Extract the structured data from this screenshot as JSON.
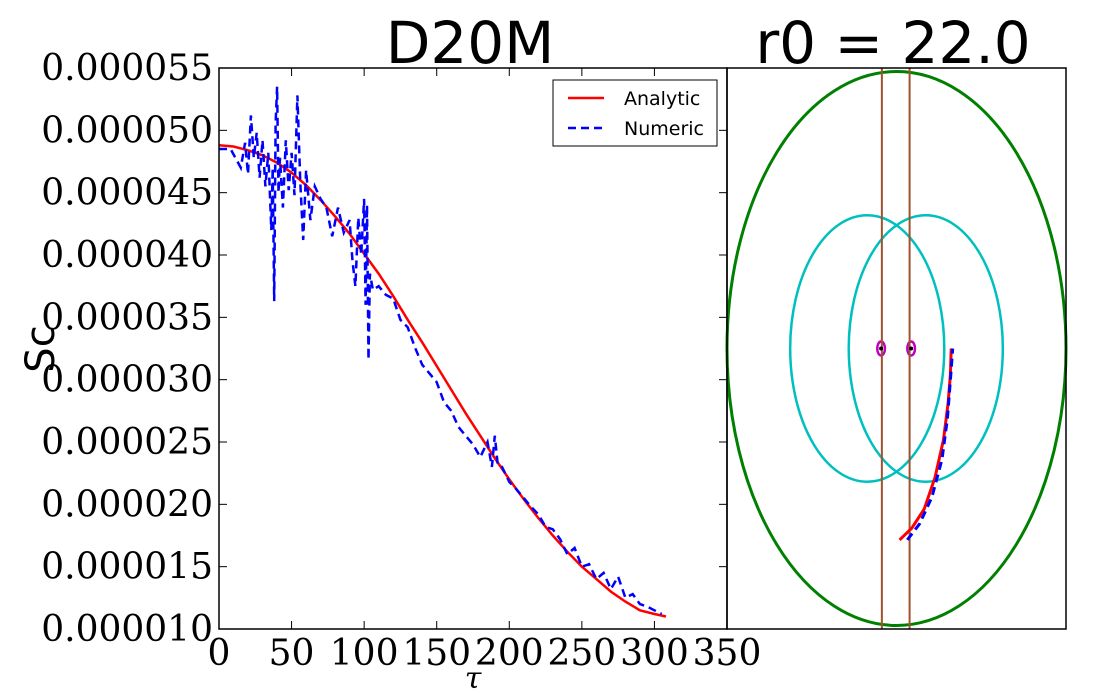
{
  "chart_data": [
    {
      "type": "line",
      "title": "D20M",
      "xlabel": "τ",
      "ylabel": "Sc",
      "xlim": [
        0,
        350
      ],
      "ylim": [
        1e-05,
        5.5e-05
      ],
      "xticks": [
        "0",
        "50",
        "100",
        "150",
        "200",
        "250",
        "300",
        "350"
      ],
      "yticks": [
        "0.000010",
        "0.000015",
        "0.000020",
        "0.000025",
        "0.000030",
        "0.000035",
        "0.000040",
        "0.000045",
        "0.000050",
        "0.000055"
      ],
      "grid": false,
      "legend": "top-right",
      "colors": {
        "analytic": "#ff0000",
        "numeric": "#0000ff"
      },
      "series": [
        {
          "name": "Analytic",
          "style": "solid",
          "x": [
            0,
            10,
            20,
            30,
            40,
            50,
            60,
            70,
            80,
            90,
            100,
            110,
            120,
            130,
            140,
            150,
            160,
            170,
            180,
            190,
            200,
            210,
            220,
            230,
            240,
            250,
            260,
            270,
            280,
            290,
            300,
            308
          ],
          "y": [
            4.88e-05,
            4.87e-05,
            4.84e-05,
            4.8e-05,
            4.74e-05,
            4.66e-05,
            4.56e-05,
            4.44e-05,
            4.31e-05,
            4.17e-05,
            4.01e-05,
            3.85e-05,
            3.67e-05,
            3.48e-05,
            3.3e-05,
            3.11e-05,
            2.92e-05,
            2.73e-05,
            2.55e-05,
            2.37e-05,
            2.2e-05,
            2.04e-05,
            1.89e-05,
            1.75e-05,
            1.62e-05,
            1.5e-05,
            1.4e-05,
            1.3e-05,
            1.22e-05,
            1.15e-05,
            1.12e-05,
            1.1e-05
          ]
        },
        {
          "name": "Numeric",
          "style": "dashed",
          "x": [
            0,
            8,
            15,
            18,
            20,
            22,
            24,
            26,
            28,
            30,
            32,
            34,
            36,
            37,
            38,
            39,
            40,
            41,
            42,
            44,
            46,
            48,
            50,
            52,
            54,
            56,
            58,
            60,
            63,
            66,
            70,
            74,
            78,
            82,
            86,
            90,
            92,
            94,
            96,
            98,
            100,
            101,
            102,
            103,
            104,
            106,
            110,
            115,
            120,
            125,
            130,
            135,
            140,
            145,
            150,
            155,
            160,
            165,
            170,
            175,
            180,
            185,
            188,
            190,
            192,
            195,
            200,
            205,
            210,
            215,
            220,
            225,
            230,
            235,
            240,
            245,
            250,
            255,
            260,
            265,
            270,
            275,
            280,
            285,
            290,
            295,
            300,
            305
          ],
          "y": [
            4.85e-05,
            4.85e-05,
            4.7e-05,
            4.9e-05,
            4.65e-05,
            5.12e-05,
            4.78e-05,
            4.98e-05,
            4.62e-05,
            4.92e-05,
            4.55e-05,
            4.82e-05,
            4.2e-05,
            4.7e-05,
            3.63e-05,
            5.05e-05,
            5.35e-05,
            4.5e-05,
            4.78e-05,
            4.38e-05,
            4.92e-05,
            4.52e-05,
            4.82e-05,
            4.48e-05,
            5.28e-05,
            4.58e-05,
            4.12e-05,
            4.68e-05,
            4.28e-05,
            4.55e-05,
            4.45e-05,
            4.38e-05,
            4.15e-05,
            4.38e-05,
            4.18e-05,
            4.28e-05,
            3.95e-05,
            3.75e-05,
            4.3e-05,
            4e-05,
            4.45e-05,
            3.6e-05,
            4.4e-05,
            3.16e-05,
            3.85e-05,
            3.72e-05,
            3.75e-05,
            3.68e-05,
            3.65e-05,
            3.48e-05,
            3.42e-05,
            3.26e-05,
            3.12e-05,
            3.05e-05,
            2.98e-05,
            2.82e-05,
            2.75e-05,
            2.62e-05,
            2.55e-05,
            2.48e-05,
            2.38e-05,
            2.5e-05,
            2.3e-05,
            2.55e-05,
            2.32e-05,
            2.3e-05,
            2.18e-05,
            2.12e-05,
            2.05e-05,
            1.98e-05,
            1.92e-05,
            1.82e-05,
            1.8e-05,
            1.72e-05,
            1.6e-05,
            1.65e-05,
            1.5e-05,
            1.52e-05,
            1.4e-05,
            1.45e-05,
            1.32e-05,
            1.42e-05,
            1.25e-05,
            1.28e-05,
            1.2e-05,
            1.18e-05,
            1.15e-05,
            1.12e-05
          ]
        }
      ]
    },
    {
      "type": "line",
      "title": "r0 = 22.0",
      "xlim": [
        -22.0,
        22.0
      ],
      "ylim": [
        -40.0,
        40.0
      ],
      "axes_ticks": false,
      "grid": false,
      "colors": {
        "boundary": "#008000",
        "circles": "#00bfbf",
        "centers": "#bf00bf",
        "verticals": "#a0522d",
        "analytic": "#ff0000",
        "numeric": "#0000ff"
      },
      "shapes": [
        {
          "kind": "ellipse",
          "cx": 0,
          "cy": 0,
          "rx": 22.0,
          "ry": 39.5
        },
        {
          "kind": "ellipse",
          "cx": -3.8,
          "cy": 0,
          "rx": 10.0,
          "ry": 19.0
        },
        {
          "kind": "ellipse",
          "cx": 3.8,
          "cy": 0,
          "rx": 10.0,
          "ry": 19.0
        },
        {
          "kind": "ellipse",
          "cx": -2.0,
          "cy": 0,
          "rx": 0.5,
          "ry": 1.0
        },
        {
          "kind": "ellipse",
          "cx": 1.9,
          "cy": 0,
          "rx": 0.5,
          "ry": 1.0
        },
        {
          "kind": "vline",
          "x": -1.9
        },
        {
          "kind": "vline",
          "x": 1.7
        }
      ],
      "dots": [
        {
          "x": -2.0,
          "y": 0
        },
        {
          "x": 1.9,
          "y": 0
        }
      ],
      "trajectories": [
        {
          "style": "solid",
          "x": [
            0.4,
            2.0,
            3.6,
            5.0,
            6.1,
            6.7,
            7.0,
            7.1
          ],
          "y": [
            -27.3,
            -25.6,
            -22.9,
            -18.4,
            -13.0,
            -7.8,
            -3.7,
            0.0
          ]
        },
        {
          "style": "dashed",
          "x": [
            1.4,
            3.0,
            4.6,
            5.9,
            6.6,
            7.0,
            7.3
          ],
          "y": [
            -27.3,
            -25.0,
            -21.2,
            -15.8,
            -10.0,
            -4.5,
            0.0
          ]
        }
      ]
    }
  ]
}
